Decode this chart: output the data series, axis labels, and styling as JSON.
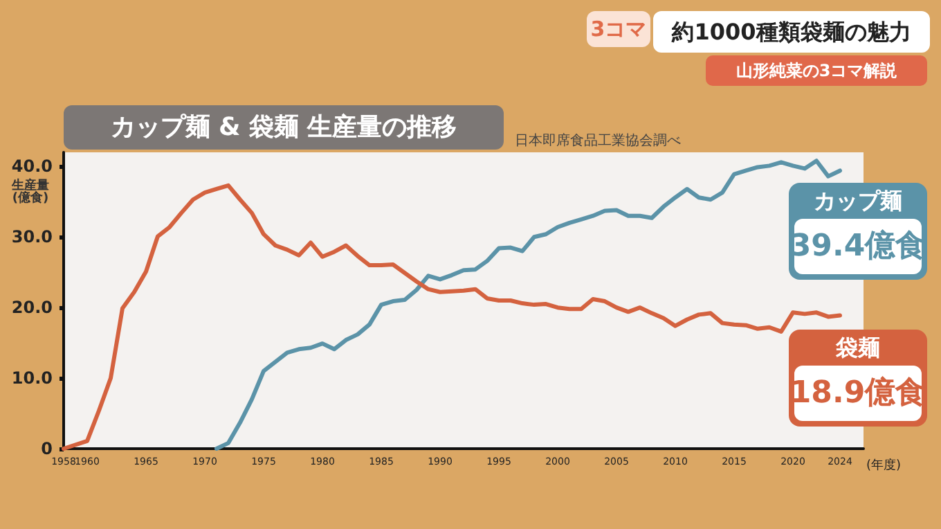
{
  "chart_data": {
    "type": "line",
    "title": "カップ麺 & 袋麺 生産量の推移",
    "ylabel": "生産量(億食)",
    "xlabel": "(年度)",
    "annotations": [
      "3コマ",
      "約1000種類袋麺の魅力",
      "山形純菜の3コマ解説",
      "日本即席食品工業協会調べ",
      "39.4億食",
      "18.9億食"
    ],
    "xlim": [
      1958,
      2026
    ],
    "xticks": [
      1958,
      1960,
      1965,
      1970,
      1975,
      1980,
      1985,
      1990,
      1995,
      2000,
      2005,
      2010,
      2015,
      2020,
      2024
    ],
    "ylim": [
      0,
      42
    ],
    "yticks": [
      {
        "value": 0,
        "label": "0"
      },
      {
        "value": 10,
        "label": "10.0"
      },
      {
        "value": 20,
        "label": "20.0"
      },
      {
        "value": 30,
        "label": "30.0"
      },
      {
        "value": 40,
        "label": "40.0"
      }
    ],
    "grid": false,
    "legend": false,
    "marker": "none",
    "line_style": "solid",
    "series": [
      {
        "name": "カップ麺",
        "color": "#5b93a8",
        "x": [
          1971,
          1972,
          1973,
          1974,
          1975,
          1976,
          1977,
          1978,
          1979,
          1980,
          1981,
          1982,
          1983,
          1984,
          1985,
          1986,
          1987,
          1988,
          1989,
          1990,
          1991,
          1992,
          1993,
          1994,
          1995,
          1996,
          1997,
          1998,
          1999,
          2000,
          2001,
          2002,
          2003,
          2004,
          2005,
          2006,
          2007,
          2008,
          2009,
          2010,
          2011,
          2012,
          2013,
          2014,
          2015,
          2016,
          2017,
          2018,
          2019,
          2020,
          2021,
          2022,
          2023,
          2024
        ],
        "values": [
          0,
          0.8,
          3.7,
          7.0,
          11.0,
          12.3,
          13.6,
          14.1,
          14.3,
          14.9,
          14.1,
          15.4,
          16.2,
          17.6,
          20.4,
          20.9,
          21.1,
          22.5,
          24.5,
          24.0,
          24.6,
          25.3,
          25.4,
          26.6,
          28.4,
          28.5,
          28.0,
          30.0,
          30.4,
          31.4,
          32.0,
          32.5,
          33.0,
          33.7,
          33.8,
          33.0,
          33.0,
          32.7,
          34.3,
          35.6,
          36.8,
          35.6,
          35.3,
          36.3,
          38.9,
          39.4,
          39.9,
          40.1,
          40.6,
          40.1,
          39.7,
          40.8,
          38.6,
          39.4
        ]
      },
      {
        "name": "袋麺",
        "color": "#d4623f",
        "x": [
          1958,
          1960,
          1961,
          1962,
          1963,
          1964,
          1965,
          1966,
          1967,
          1968,
          1969,
          1970,
          1971,
          1972,
          1973,
          1974,
          1975,
          1976,
          1977,
          1978,
          1979,
          1980,
          1981,
          1982,
          1983,
          1984,
          1985,
          1986,
          1987,
          1988,
          1989,
          1990,
          1991,
          1992,
          1993,
          1994,
          1995,
          1996,
          1997,
          1998,
          1999,
          2000,
          2001,
          2002,
          2003,
          2004,
          2005,
          2006,
          2007,
          2008,
          2009,
          2010,
          2011,
          2012,
          2013,
          2014,
          2015,
          2016,
          2017,
          2018,
          2019,
          2020,
          2021,
          2022,
          2023,
          2024
        ],
        "values": [
          0,
          1.1,
          5.4,
          10.0,
          19.9,
          22.2,
          25.1,
          30.1,
          31.4,
          33.4,
          35.3,
          36.3,
          36.8,
          37.3,
          35.3,
          33.4,
          30.4,
          28.8,
          28.2,
          27.4,
          29.2,
          27.2,
          27.9,
          28.8,
          27.3,
          26.0,
          26.0,
          26.1,
          24.9,
          23.7,
          22.6,
          22.2,
          22.3,
          22.4,
          22.6,
          21.3,
          21.0,
          21.0,
          20.6,
          20.4,
          20.5,
          20.0,
          19.8,
          19.8,
          21.2,
          20.9,
          20.0,
          19.4,
          20.0,
          19.2,
          18.5,
          17.4,
          18.3,
          19.0,
          19.2,
          17.8,
          17.6,
          17.5,
          17.0,
          17.2,
          16.6,
          19.3,
          19.1,
          19.3,
          18.7,
          18.9
        ]
      }
    ]
  }
}
